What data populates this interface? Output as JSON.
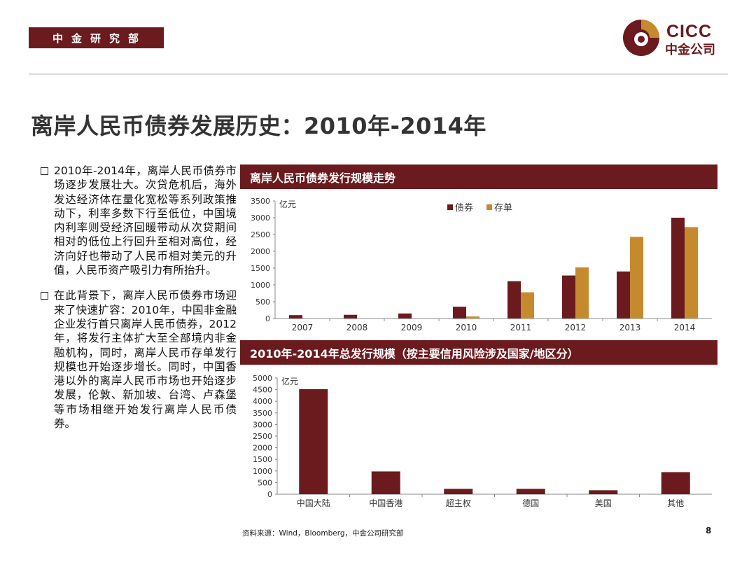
{
  "header": {
    "department": "中金研究部",
    "logo_en": "CICC",
    "logo_cn": "中金公司"
  },
  "page_title": "离岸人民币债券发展历史：2010年-2014年",
  "bullets": [
    "2010年-2014年，离岸人民币债券市场逐步发展壮大。次贷危机后，海外发达经济体在量化宽松等系列政策推动下，利率多数下行至低位，中国境内利率则受经济回暖带动从次贷期间相对的低位上行回升至相对高位，经济向好也带动了人民币相对美元的升值，人民币资产吸引力有所抬升。",
    "在此背景下，离岸人民币债券市场迎来了快速扩容：2010年，中国非金融企业发行首只离岸人民币债券，2012年，将发行主体扩大至全部境内非金融机构，同时，离岸人民币存单发行规模也开始逐步增长。同时，中国香港以外的离岸人民币市场也开始逐步发展，伦敦、新加坡、台湾、卢森堡等市场相继开始发行离岸人民币债券。"
  ],
  "chart_data": [
    {
      "type": "bar",
      "title": "离岸人民币债券发行规模走势",
      "unit_label": "亿元",
      "categories": [
        "2007",
        "2008",
        "2009",
        "2010",
        "2011",
        "2012",
        "2013",
        "2014"
      ],
      "series": [
        {
          "name": "债券",
          "color": "#6b1a1d",
          "values": [
            100,
            110,
            150,
            350,
            1110,
            1280,
            1400,
            3000
          ]
        },
        {
          "name": "存单",
          "color": "#c68a2e",
          "values": [
            0,
            0,
            0,
            60,
            780,
            1520,
            2430,
            2720
          ]
        }
      ],
      "yticks": [
        0,
        500,
        1000,
        1500,
        2000,
        2500,
        3000,
        3500
      ],
      "ylim": [
        0,
        3500
      ],
      "legend": "top-center",
      "grid": false
    },
    {
      "type": "bar",
      "title": "2010年-2014年总发行规模（按主要信用风险涉及国家/地区分）",
      "unit_label": "亿元",
      "categories": [
        "中国大陆",
        "中国香港",
        "超主权",
        "德国",
        "美国",
        "其他"
      ],
      "series": [
        {
          "name": "",
          "color": "#6b1a1d",
          "values": [
            4520,
            980,
            230,
            230,
            170,
            950
          ]
        }
      ],
      "yticks": [
        0,
        500,
        1000,
        1500,
        2000,
        2500,
        3000,
        3500,
        4000,
        4500,
        5000
      ],
      "ylim": [
        0,
        5000
      ],
      "grid": false
    }
  ],
  "footer": {
    "source": "资料来源：Wind，Bloomberg，中金公司研究部",
    "page_number": "8"
  },
  "colors": {
    "brand": "#6b1a1d",
    "accent": "#c68a2e"
  }
}
